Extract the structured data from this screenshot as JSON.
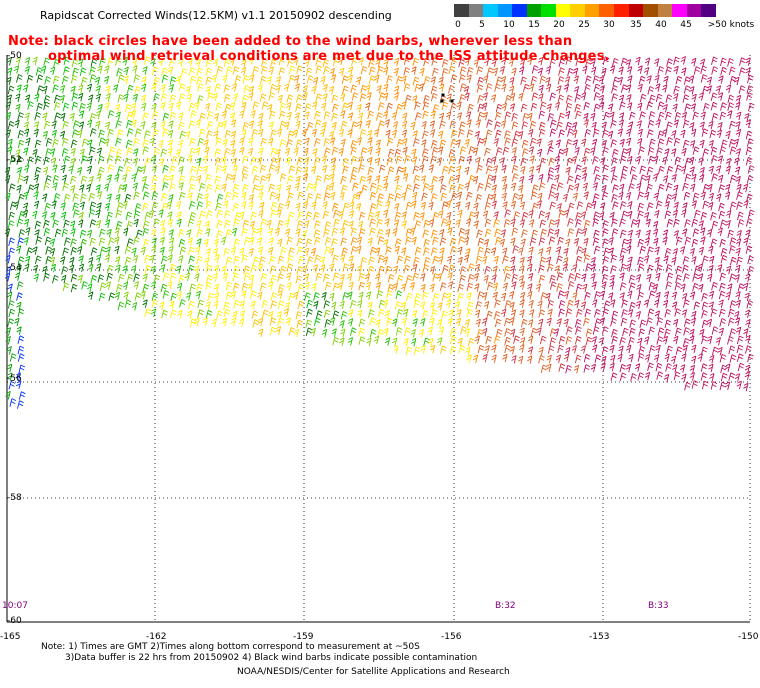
{
  "title": "Rapidscat Corrected Winds(12.5KM) v1.1 20150902 descending",
  "red_note": {
    "line1": "Note: black circles have been added to the wind barbs, wherever less than",
    "line2": "optimal wind retrieval conditions are met due to the ISS attitude changes."
  },
  "colorbar": {
    "colors": [
      "#404040",
      "#808080",
      "#00c8ff",
      "#0096ff",
      "#0032ff",
      "#00a000",
      "#00e000",
      "#ffff00",
      "#ffd000",
      "#ffa000",
      "#ff6000",
      "#ff2000",
      "#c00000",
      "#a05000",
      "#c08040",
      "#ff00ff",
      "#a000a0",
      "#500080"
    ],
    "labels": [
      "0",
      "5",
      "10",
      "15",
      "20",
      "25",
      "30",
      "35",
      "40",
      "45",
      ">50 knots"
    ]
  },
  "map": {
    "lon_labels": [
      "-165",
      "-162",
      "-159",
      "-156",
      "-153",
      "-150"
    ],
    "lat_labels": [
      "-50",
      "-52",
      "-54",
      "-56",
      "-58",
      "-60"
    ],
    "time_labels": [
      "10:07",
      "B:32",
      "B:33"
    ]
  },
  "footer": {
    "line1": "Note: 1) Times are GMT 2)Times along bottom correspond to measurement at ~50S",
    "line2": "3)Data buffer is 22 hrs from 20150902 4) Black wind barbs indicate possible contamination",
    "line3": "NOAA/NESDIS/Center for Satellite Applications and Research"
  }
}
